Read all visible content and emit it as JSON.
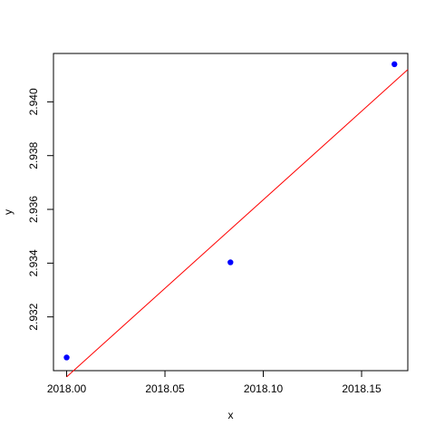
{
  "chart_data": {
    "type": "scatter",
    "xlabel": "x",
    "ylabel": "y",
    "xlim": [
      1999.993,
      2018.1735
    ],
    "ylim": [
      2.93,
      2.9418
    ],
    "xticks": [
      2018.0,
      2018.05,
      2018.1,
      2018.15
    ],
    "xtick_labels": [
      "2018.00",
      "2018.05",
      "2018.10",
      "2018.15"
    ],
    "yticks": [
      2.932,
      2.934,
      2.936,
      2.938,
      2.94
    ],
    "ytick_labels": [
      "2.932",
      "2.934",
      "2.936",
      "2.938",
      "2.940"
    ],
    "points": [
      {
        "x": 2018.0,
        "y": 2.93049
      },
      {
        "x": 2018.0833,
        "y": 2.93403
      },
      {
        "x": 2018.1667,
        "y": 2.9414
      }
    ],
    "fit_line": {
      "x": [
        2018.0,
        2018.1735
      ],
      "y": [
        2.92977,
        2.9412
      ]
    },
    "point_color": "#0000ff",
    "line_color": "#ff0000",
    "grid": false,
    "legend": "none"
  }
}
